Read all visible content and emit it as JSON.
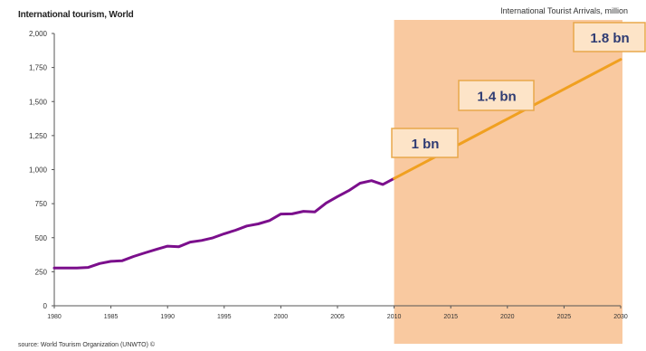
{
  "chart_data": {
    "type": "line",
    "title": "International tourism, World",
    "subtitle": "International Tourist Arrivals, million",
    "source": "source: World Tourism Organization (UNWTO) ©",
    "xlim": [
      1980,
      2030
    ],
    "ylim": [
      0,
      2000
    ],
    "x_ticks": [
      "1980",
      "1985",
      "1990",
      "1995",
      "2000",
      "2005",
      "2010",
      "2015",
      "2020",
      "2025",
      "2030"
    ],
    "y_ticks": [
      "0",
      "250",
      "500",
      "750",
      "1,000",
      "1,250",
      "1,500",
      "1,750",
      "2,000"
    ],
    "forecast_region": {
      "from": 2010,
      "to": 2030,
      "color": "#f9c9a0"
    },
    "series": [
      {
        "color": "#7b0f8c",
        "x": [
          1980,
          1981,
          1982,
          1983,
          1984,
          1985,
          1986,
          1987,
          1988,
          1989,
          1990,
          1991,
          1992,
          1993,
          1994,
          1995,
          1996,
          1997,
          1998,
          1999,
          2000,
          2001,
          2002,
          2003,
          2004,
          2005,
          2006,
          2007,
          2008,
          2009,
          2010
        ],
        "y": [
          278,
          278,
          278,
          282,
          310,
          326,
          331,
          362,
          389,
          414,
          438,
          434,
          468,
          480,
          499,
          529,
          555,
          586,
          601,
          626,
          674,
          675,
          694,
          690,
          755,
          802,
          846,
          900,
          919,
          891,
          935
        ]
      },
      {
        "color": "#f0a020",
        "x": [
          2010,
          2030
        ],
        "y": [
          935,
          1809
        ]
      }
    ],
    "callouts": [
      {
        "label": "1 bn",
        "x": 2012,
        "y": 1000
      },
      {
        "label": "1.4 bn",
        "x": 2020,
        "y": 1400
      },
      {
        "label": "1.8 bn",
        "x": 2030,
        "y": 1800
      }
    ]
  }
}
